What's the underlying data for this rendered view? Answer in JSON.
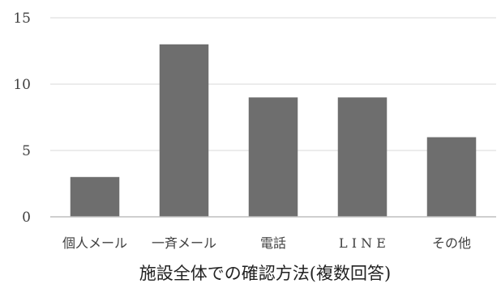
{
  "chart_data": {
    "type": "bar",
    "title": "",
    "xlabel": "施設全体での確認方法(複数回答)",
    "ylabel": "",
    "categories": [
      "個人メール",
      "一斉メール",
      "電話",
      "L I N E",
      "その他"
    ],
    "values": [
      3,
      13,
      9,
      9,
      6
    ],
    "ylim": [
      0,
      15
    ],
    "yticks": [
      0,
      5,
      10,
      15
    ],
    "grid": true,
    "legend": "none",
    "colors": {
      "bar": "#6e6e6e",
      "grid": "#d9d9d9",
      "axis": "#bfbfbf"
    }
  }
}
